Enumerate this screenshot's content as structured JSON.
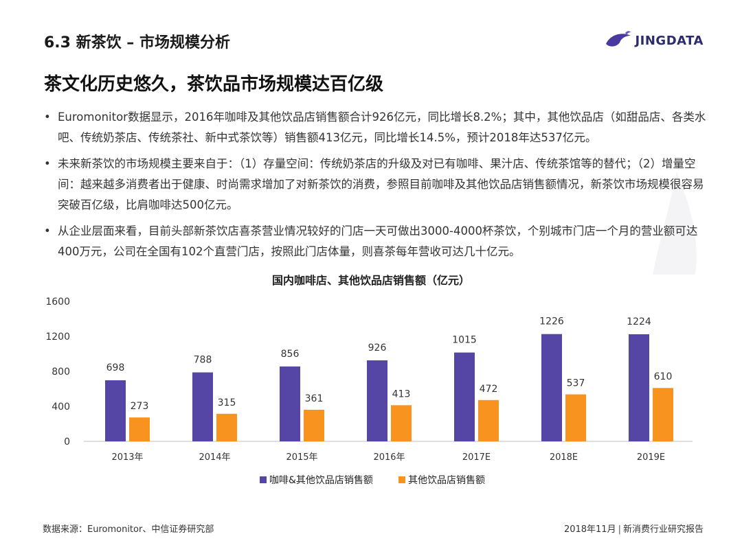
{
  "header": {
    "section_title": "6.3 新茶饮 – 市场规模分析",
    "logo_text": "JINGDATA"
  },
  "headline": "茶文化历史悠久，茶饮品市场规模达百亿级",
  "bullets": [
    "Euromonitor数据显示，2016年咖啡及其他饮品店销售额合计926亿元，同比增长8.2%；其中，其他饮品店（如甜品店、各类水吧、传统奶茶店、传统茶社、新中式茶饮等）销售额413亿元，同比增长14.5%，预计2018年达537亿元。",
    "未来新茶饮的市场规模主要来自于：（1）存量空间：传统奶茶店的升级及对已有咖啡、果汁店、传统茶馆等的替代；（2）增量空间：越来越多消费者出于健康、时尚需求增加了对新茶饮的消费，参照目前咖啡及其他饮品店销售额情况，新茶饮市场规模很容易突破百亿级，比肩咖啡达500亿元。",
    "从企业层面来看，目前头部新茶饮店喜茶营业情况较好的门店一天可做出3000-4000杯茶饮，个别城市门店一个月的营业额可达400万元，公司在全国有102个直营门店，按照此门店体量，则喜茶每年营收可达几十亿元。"
  ],
  "chart_data": {
    "type": "bar",
    "title": "国内咖啡店、其他饮品店销售额（亿元）",
    "categories": [
      "2013年",
      "2014年",
      "2015年",
      "2016年",
      "2017E",
      "2018E",
      "2019E"
    ],
    "series": [
      {
        "name": "咖啡&其他饮品店销售额",
        "color": "#5546a5",
        "values": [
          698,
          788,
          856,
          926,
          1015,
          1226,
          1224
        ]
      },
      {
        "name": "其他饮品店销售额",
        "color": "#f7931e",
        "values": [
          273,
          315,
          361,
          413,
          472,
          537,
          610
        ]
      }
    ],
    "ylim": [
      0,
      1600
    ],
    "yticks": [
      "0",
      "400",
      "800",
      "1200",
      "1600"
    ],
    "xlabel": "",
    "ylabel": "",
    "legend_position": "bottom"
  },
  "footer": {
    "source": "数据来源：Euromonitor、中信证券研究部",
    "date": "2018年11月",
    "separator": "|",
    "report": "新消费行业研究报告"
  }
}
